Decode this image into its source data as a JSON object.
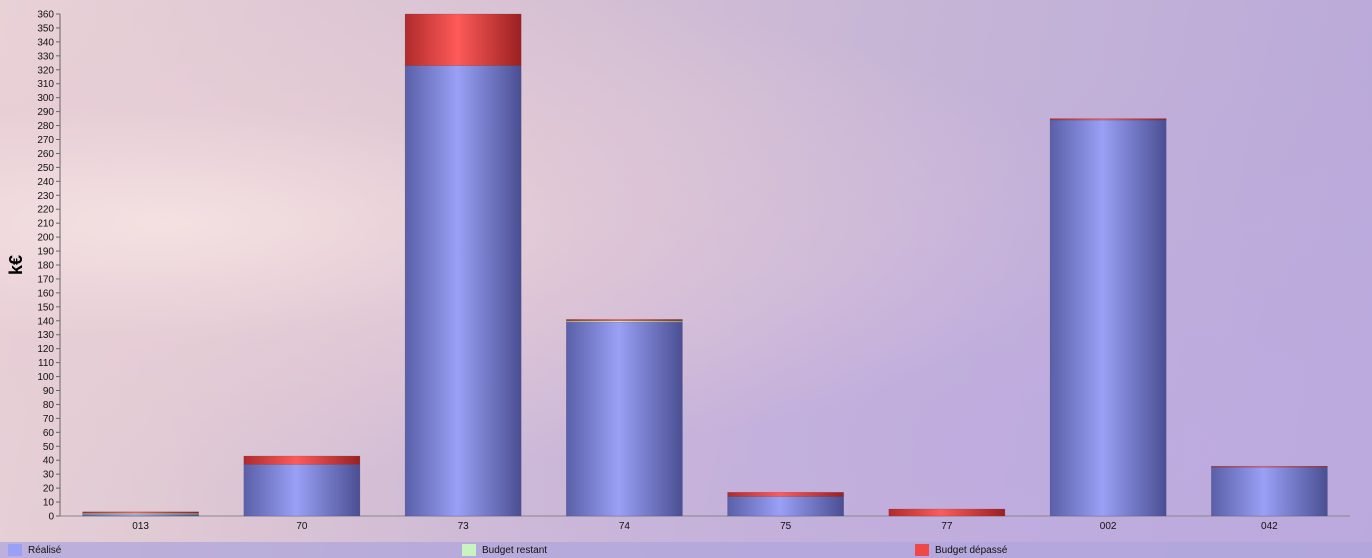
{
  "chart_data": {
    "type": "bar",
    "stacked": true,
    "ylabel": "k€",
    "ylim": [
      0,
      360
    ],
    "ytick_step": 10,
    "categories": [
      "013",
      "70",
      "73",
      "74",
      "75",
      "77",
      "002",
      "042"
    ],
    "series": [
      {
        "name": "Réalisé",
        "color": "#9aa0f5",
        "values": [
          1,
          37,
          323,
          139,
          14,
          0,
          284,
          35
        ]
      },
      {
        "name": "Budget restant",
        "color": "#c9f4c2",
        "values": [
          1,
          0,
          0,
          1,
          0,
          0,
          0,
          0
        ]
      },
      {
        "name": "Budget dépassé",
        "color": "#f04848",
        "values": [
          1,
          6,
          37,
          1,
          3,
          5,
          1,
          0.5
        ]
      }
    ],
    "grid": false,
    "legend_position": "bottom"
  }
}
